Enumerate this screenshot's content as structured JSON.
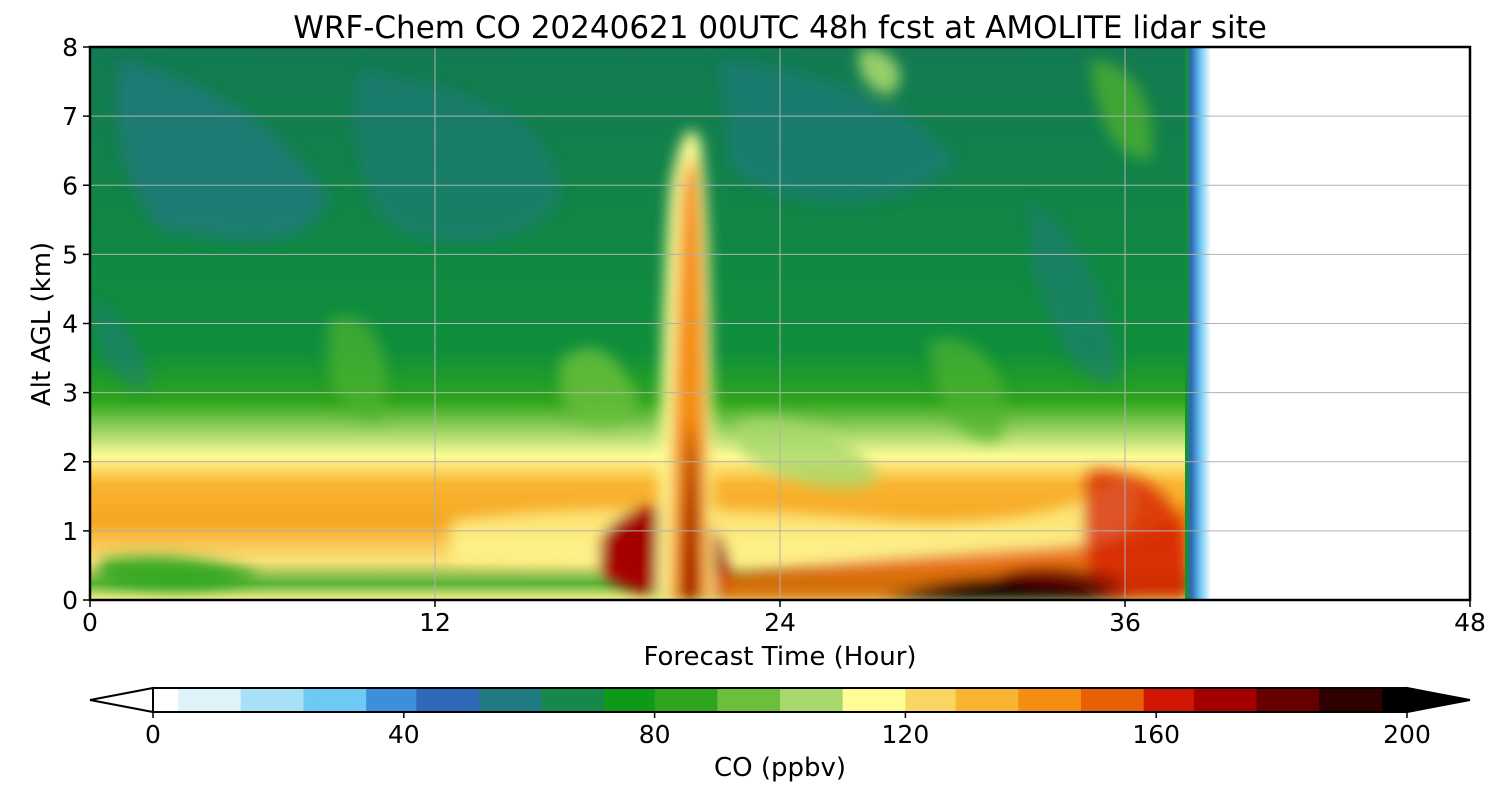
{
  "chart_data": {
    "type": "heatmap",
    "title": "WRF-Chem CO  20240621 00UTC 48h fcst at AMOLITE lidar site",
    "xlabel": "Forecast Time (Hour)",
    "ylabel": "Alt AGL (km)",
    "xlim": [
      0,
      48
    ],
    "ylim": [
      0,
      8
    ],
    "xticks": [
      "0",
      "12",
      "24",
      "36",
      "48"
    ],
    "yticks": [
      "0",
      "1",
      "2",
      "3",
      "4",
      "5",
      "6",
      "7",
      "8"
    ],
    "grid": true,
    "data_end_hour": 39,
    "colorbar": {
      "label": "CO  (ppbv)",
      "range": [
        0,
        200
      ],
      "ticks": [
        "0",
        "40",
        "80",
        "120",
        "160",
        "200"
      ],
      "extend": "both",
      "placement": "bottom",
      "colors": [
        "#ffffff",
        "#dff3fb",
        "#a8e0f7",
        "#6ec9f5",
        "#3b8fdc",
        "#2e6ab8",
        "#1f7a82",
        "#16894a",
        "#0c9a18",
        "#2ea51c",
        "#6cbf3c",
        "#a7d86c",
        "#fdfc96",
        "#fbd564",
        "#f9b531",
        "#f48e10",
        "#e86005",
        "#d21606",
        "#a40000",
        "#660000",
        "#2e0000",
        "#000000"
      ]
    },
    "features": [
      {
        "name": "mid-troposphere background",
        "alt_km": [
          3,
          8
        ],
        "hours": [
          0,
          38
        ],
        "co_ppbv": [
          65,
          80
        ]
      },
      {
        "name": "boundary layer",
        "alt_km": [
          0,
          3
        ],
        "hours": [
          0,
          38
        ],
        "co_ppbv": [
          95,
          125
        ]
      },
      {
        "name": "narrow plume",
        "alt_km": [
          0,
          6.8
        ],
        "hours": [
          20.5,
          22
        ],
        "co_ppbv": [
          130,
          180
        ]
      },
      {
        "name": "surface maximum",
        "alt_km": [
          0,
          0.3
        ],
        "hours": [
          28,
          34
        ],
        "co_ppbv": [
          190,
          200
        ]
      }
    ]
  }
}
